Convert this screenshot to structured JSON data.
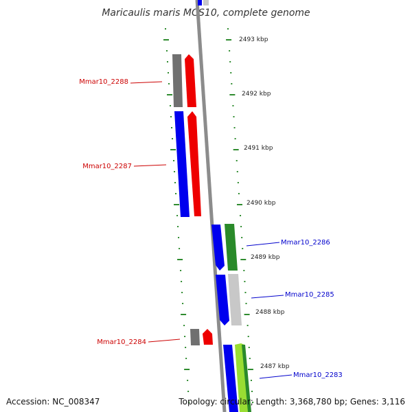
{
  "title": "Maricaulis maris MCS10, complete genome",
  "accession": "Accession: NC_008347",
  "topology": "Topology: circular; Length: 3,368,780 bp; Genes: 3,116",
  "colors": {
    "backbone": "#8c8c8c",
    "tick": "#2e8b2e",
    "forward_label": "#cc0000",
    "reverse_label": "#0000cc",
    "blue": "#0000ee",
    "red": "#ee0000",
    "gray": "#707070",
    "light_gray": "#c8c8c8",
    "green": "#2a8a2a",
    "lime": "#99dd33"
  },
  "scale_labels": [
    "2493 kbp",
    "2492 kbp",
    "2491 kbp",
    "2490 kbp",
    "2489 kbp",
    "2488 kbp",
    "2487 kbp"
  ],
  "gene_labels": [
    {
      "name": "Mmar10_2288",
      "strand": "forward"
    },
    {
      "name": "Mmar10_2287",
      "strand": "forward"
    },
    {
      "name": "Mmar10_2286",
      "strand": "reverse"
    },
    {
      "name": "Mmar10_2285",
      "strand": "reverse"
    },
    {
      "name": "Mmar10_2284",
      "strand": "forward"
    },
    {
      "name": "Mmar10_2283",
      "strand": "reverse"
    }
  ]
}
